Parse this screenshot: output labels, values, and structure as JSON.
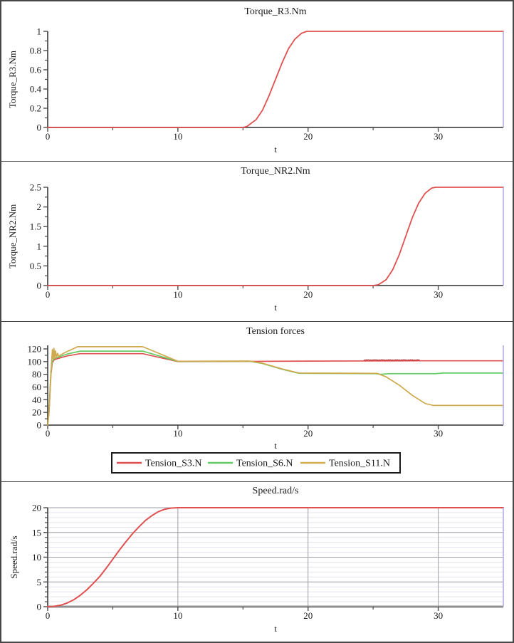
{
  "window": {
    "background": "#ffffff",
    "border_color": "#474747",
    "text_color": "#1b1b1b",
    "axis_color": "#4c4c4c",
    "right_edge_color": "#b6abe4"
  },
  "chart_data": [
    {
      "type": "line",
      "title": "Torque_R3.Nm",
      "xlabel": "t",
      "ylabel": "Torque_R3.Nm",
      "xlim": [
        0,
        35
      ],
      "ylim": [
        0,
        1
      ],
      "x_major_ticks": [
        0,
        10,
        20,
        30
      ],
      "x_major_labels": [
        "0",
        "10",
        "20",
        "30"
      ],
      "x_minor_ticks": [
        5,
        15,
        25
      ],
      "y_major_ticks": [
        0,
        0.2,
        0.4,
        0.6,
        0.8,
        1
      ],
      "y_major_labels": [
        "0",
        "0.2",
        "0.4",
        "0.6",
        "0.8",
        "1"
      ],
      "y_minor_ticks": [
        0.1,
        0.3,
        0.5,
        0.7,
        0.9
      ],
      "grid": null,
      "legend": null,
      "series": [
        {
          "name": "Torque_R3.Nm",
          "color": "#e15050",
          "width": 1.8,
          "points": [
            [
              0,
              0
            ],
            [
              15,
              0
            ],
            [
              15.3,
              0.01
            ],
            [
              16,
              0.08
            ],
            [
              16.5,
              0.18
            ],
            [
              17,
              0.33
            ],
            [
              17.5,
              0.5
            ],
            [
              18,
              0.67
            ],
            [
              18.5,
              0.82
            ],
            [
              19,
              0.92
            ],
            [
              19.5,
              0.98
            ],
            [
              19.9,
              1
            ],
            [
              35,
              1
            ]
          ]
        }
      ]
    },
    {
      "type": "line",
      "title": "Torque_NR2.Nm",
      "xlabel": "t",
      "ylabel": "Torque_NR2.Nm",
      "xlim": [
        0,
        35
      ],
      "ylim": [
        0,
        2.5
      ],
      "x_major_ticks": [
        0,
        10,
        20,
        30
      ],
      "x_major_labels": [
        "0",
        "10",
        "20",
        "30"
      ],
      "x_minor_ticks": [
        5,
        15,
        25
      ],
      "y_major_ticks": [
        0,
        0.5,
        1,
        1.5,
        2,
        2.5
      ],
      "y_major_labels": [
        "0",
        "0.5",
        "1",
        "1.5",
        "2",
        "2.5"
      ],
      "y_minor_ticks": [
        0.25,
        0.75,
        1.25,
        1.75,
        2.25
      ],
      "grid": null,
      "legend": null,
      "series": [
        {
          "name": "Torque_NR2.Nm",
          "color": "#e15050",
          "width": 1.8,
          "points": [
            [
              0,
              0
            ],
            [
              25,
              0
            ],
            [
              25.4,
              0.02
            ],
            [
              26,
              0.15
            ],
            [
              26.5,
              0.4
            ],
            [
              27,
              0.78
            ],
            [
              27.5,
              1.25
            ],
            [
              28,
              1.72
            ],
            [
              28.5,
              2.1
            ],
            [
              29,
              2.35
            ],
            [
              29.5,
              2.48
            ],
            [
              29.8,
              2.5
            ],
            [
              35,
              2.5
            ]
          ]
        }
      ]
    },
    {
      "type": "line",
      "title": "Tension forces",
      "xlabel": "t",
      "ylabel": "",
      "xlim": [
        0,
        35
      ],
      "ylim": [
        0,
        120
      ],
      "x_major_ticks": [
        0,
        10,
        20,
        30
      ],
      "x_major_labels": [
        "0",
        "10",
        "20",
        "30"
      ],
      "x_minor_ticks": [
        5,
        15,
        25
      ],
      "y_major_ticks": [
        0,
        20,
        40,
        60,
        80,
        100,
        120
      ],
      "y_major_labels": [
        "0",
        "20",
        "40",
        "60",
        "80",
        "100",
        "120"
      ],
      "y_minor_ticks": [
        10,
        30,
        50,
        70,
        90,
        110
      ],
      "grid": null,
      "legend": {
        "entries": [
          {
            "label": "Tension_S3.N",
            "color": "#e15050"
          },
          {
            "label": "Tension_S6.N",
            "color": "#66cb66"
          },
          {
            "label": "Tension_S11.N",
            "color": "#d2ae52"
          }
        ]
      },
      "noise": {
        "series": "Tension_S3.N",
        "t0": 24.3,
        "t1": 28.6,
        "base": 101.6,
        "amp": 1.6,
        "color": "#b03232"
      },
      "series": [
        {
          "name": "Tension_S3.N",
          "color": "#e15050",
          "width": 1.7,
          "points": [
            [
              0,
              0
            ],
            [
              0.1,
              20
            ],
            [
              0.25,
              80
            ],
            [
              0.35,
              98
            ],
            [
              0.5,
              103
            ],
            [
              0.8,
              105
            ],
            [
              1.5,
              109
            ],
            [
              2.5,
              112.5
            ],
            [
              7.3,
              112.5
            ],
            [
              10,
              100
            ],
            [
              15.5,
              100.3
            ],
            [
              20,
              100.8
            ],
            [
              24,
              101
            ],
            [
              28.6,
              101.3
            ],
            [
              35,
              101.3
            ]
          ]
        },
        {
          "name": "Tension_S6.N",
          "color": "#66cb66",
          "width": 1.7,
          "points": [
            [
              0,
              0
            ],
            [
              0.1,
              22
            ],
            [
              0.25,
              85
            ],
            [
              0.35,
              100
            ],
            [
              0.5,
              105
            ],
            [
              0.8,
              107
            ],
            [
              1.5,
              112
            ],
            [
              2.5,
              116.5
            ],
            [
              7.3,
              116.5
            ],
            [
              10,
              100.3
            ],
            [
              15.5,
              100.6
            ],
            [
              16.5,
              97
            ],
            [
              18,
              88
            ],
            [
              19.3,
              81.5
            ],
            [
              25.2,
              81
            ],
            [
              25.6,
              80
            ],
            [
              26.2,
              81
            ],
            [
              29.8,
              81
            ],
            [
              30.4,
              82
            ],
            [
              35,
              82
            ]
          ]
        },
        {
          "name": "Tension_S11.N",
          "color": "#cfa94e",
          "width": 1.7,
          "points": [
            [
              0,
              0
            ],
            [
              0.08,
              15
            ],
            [
              0.2,
              60
            ],
            [
              0.3,
              100
            ],
            [
              0.36,
              119
            ],
            [
              0.42,
              104
            ],
            [
              0.48,
              121
            ],
            [
              0.54,
              105
            ],
            [
              0.6,
              117
            ],
            [
              0.68,
              107
            ],
            [
              0.76,
              113
            ],
            [
              0.85,
              108
            ],
            [
              0.95,
              110
            ],
            [
              1.3,
              114
            ],
            [
              2.3,
              123.5
            ],
            [
              7.3,
              123.5
            ],
            [
              10,
              100.6
            ],
            [
              15.5,
              100.9
            ],
            [
              16.5,
              97.5
            ],
            [
              18,
              88.5
            ],
            [
              19.3,
              82
            ],
            [
              25.3,
              81.5
            ],
            [
              26,
              76
            ],
            [
              27,
              63
            ],
            [
              28,
              47
            ],
            [
              29,
              34
            ],
            [
              29.6,
              31
            ],
            [
              35,
              31
            ]
          ]
        }
      ]
    },
    {
      "type": "line",
      "title": "Speed.rad/s",
      "xlabel": "t",
      "ylabel": "Speed.rad/s",
      "xlim": [
        0,
        35
      ],
      "ylim": [
        0,
        20
      ],
      "x_major_ticks": [
        0,
        10,
        20,
        30
      ],
      "x_major_labels": [
        "0",
        "10",
        "20",
        "30"
      ],
      "x_minor_ticks": [
        5,
        15,
        25
      ],
      "y_major_ticks": [
        0,
        5,
        10,
        15,
        20
      ],
      "y_major_labels": [
        "0",
        "5",
        "10",
        "15",
        "20"
      ],
      "y_minor_ticks": [
        1,
        2,
        3,
        4,
        6,
        7,
        8,
        9,
        11,
        12,
        13,
        14,
        16,
        17,
        18,
        19
      ],
      "grid": {
        "minor_color": "#e4e4ec",
        "major_color": "#9d9da5",
        "x_major": [
          10,
          20,
          30
        ],
        "y_major": [
          5,
          10,
          15,
          20
        ],
        "y_minor": [
          1,
          2,
          3,
          4,
          6,
          7,
          8,
          9,
          11,
          12,
          13,
          14,
          16,
          17,
          18,
          19
        ]
      },
      "x_axis_style": {
        "color": "#8f8f8f",
        "width": 3
      },
      "legend": null,
      "series": [
        {
          "name": "Speed.rad/s",
          "color": "#e15050",
          "width": 2,
          "points": [
            [
              0,
              0
            ],
            [
              0.5,
              0.08
            ],
            [
              1,
              0.3
            ],
            [
              1.5,
              0.75
            ],
            [
              2,
              1.4
            ],
            [
              2.5,
              2.3
            ],
            [
              3,
              3.4
            ],
            [
              3.5,
              4.7
            ],
            [
              4,
              6.1
            ],
            [
              4.5,
              7.8
            ],
            [
              5,
              9.6
            ],
            [
              5.5,
              11.4
            ],
            [
              6,
              13.1
            ],
            [
              6.5,
              14.7
            ],
            [
              7,
              16.1
            ],
            [
              7.5,
              17.4
            ],
            [
              8,
              18.4
            ],
            [
              8.5,
              19.2
            ],
            [
              9,
              19.7
            ],
            [
              9.5,
              19.93
            ],
            [
              10,
              20
            ],
            [
              35,
              20
            ]
          ]
        }
      ]
    }
  ]
}
